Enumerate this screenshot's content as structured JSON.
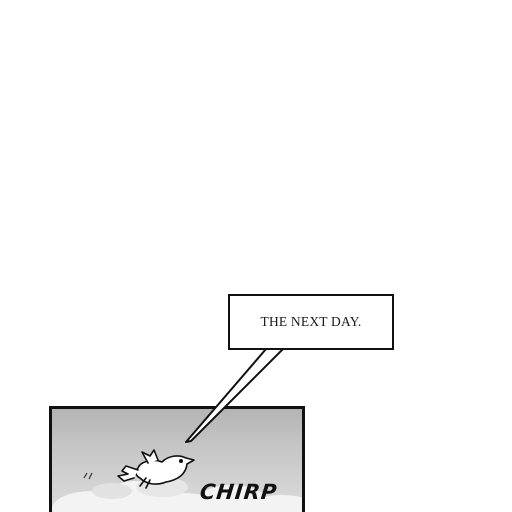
{
  "caption": {
    "text": "THE NEXT DAY."
  },
  "sound_effect": {
    "text": "CHIRP"
  },
  "colors": {
    "background": "#ffffff",
    "ink": "#111111",
    "sky": "#c4c4c4",
    "cloud": "#f2f2f2"
  },
  "icons": [
    "bird-icon",
    "speech-tail-icon",
    "cloud-icon"
  ]
}
